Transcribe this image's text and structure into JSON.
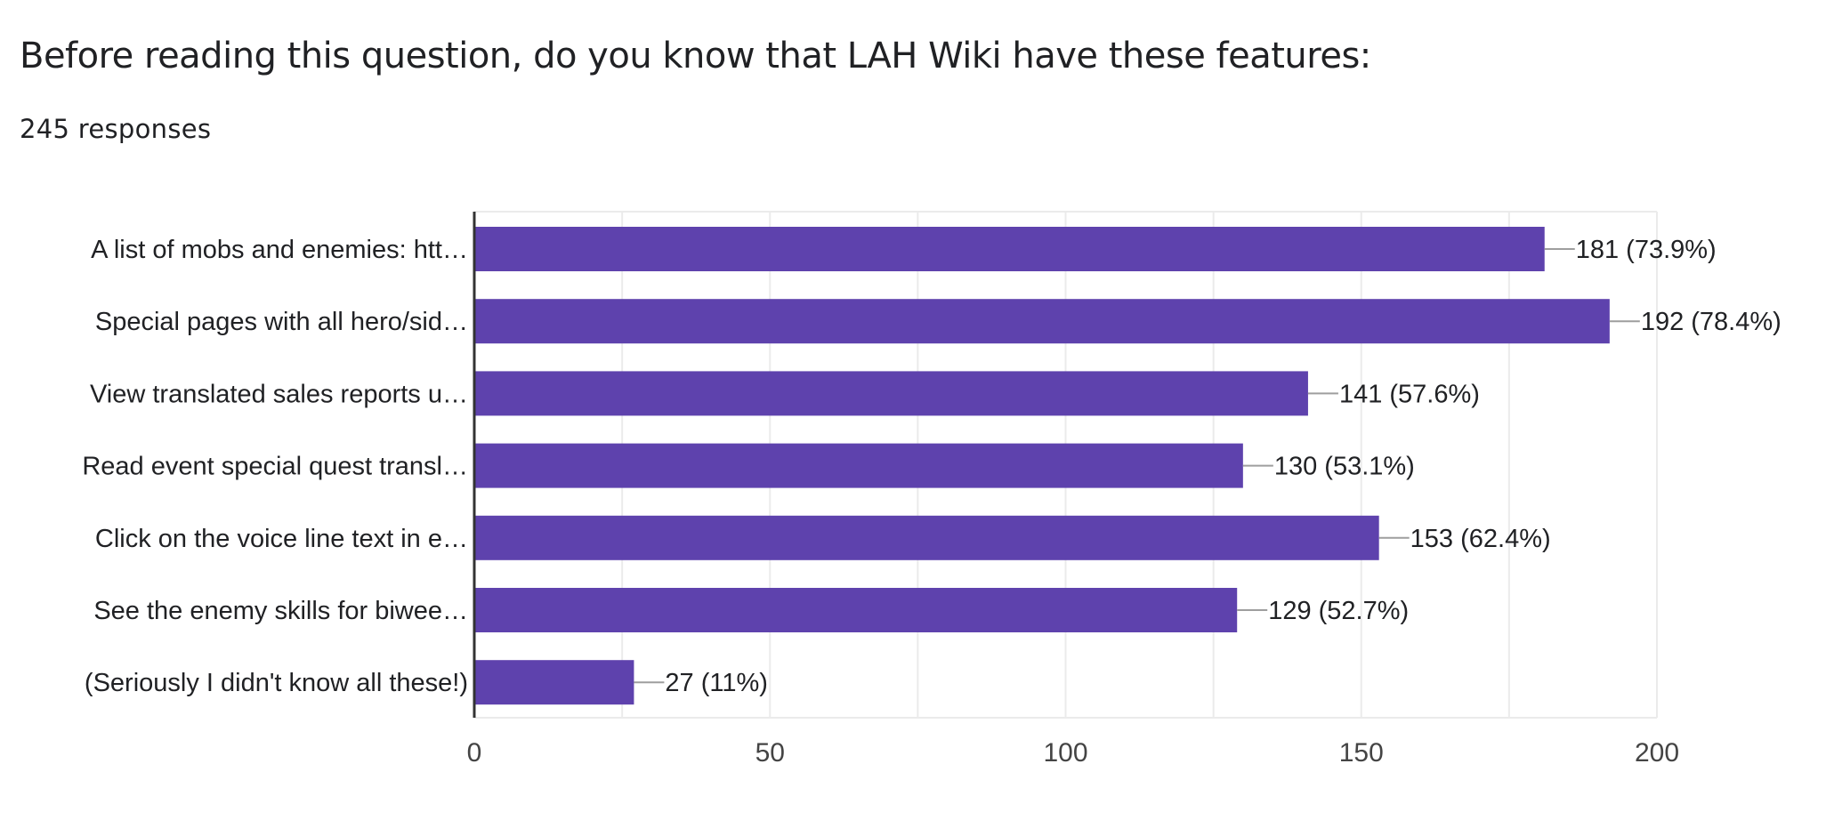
{
  "question": {
    "title": "Before reading this question, do you know that LAH Wiki have these features:",
    "responses": "245 responses"
  },
  "colors": {
    "bar": "#5e42ad",
    "grid": "#ebebeb",
    "axis": "#333333",
    "leader": "#9e9e9e",
    "text": "#202124"
  },
  "chart_data": {
    "type": "bar",
    "orientation": "horizontal",
    "categories": [
      "A list of mobs and enemies: htt…",
      "Special pages with all hero/sid…",
      "View translated sales reports u…",
      "Read event special quest transl…",
      "Click on the voice line text in e…",
      "See the enemy skills for biwee…",
      "(Seriously I didn't know all these!)"
    ],
    "values": [
      181,
      192,
      141,
      130,
      153,
      129,
      27
    ],
    "data_labels": [
      "181 (73.9%)",
      "192 (78.4%)",
      "141 (57.6%)",
      "130 (53.1%)",
      "153 (62.4%)",
      "129 (52.7%)",
      "27 (11%)"
    ],
    "xlim": [
      0,
      200
    ],
    "x_ticks": [
      0,
      50,
      100,
      150,
      200
    ],
    "grid": true,
    "legend": "none"
  }
}
